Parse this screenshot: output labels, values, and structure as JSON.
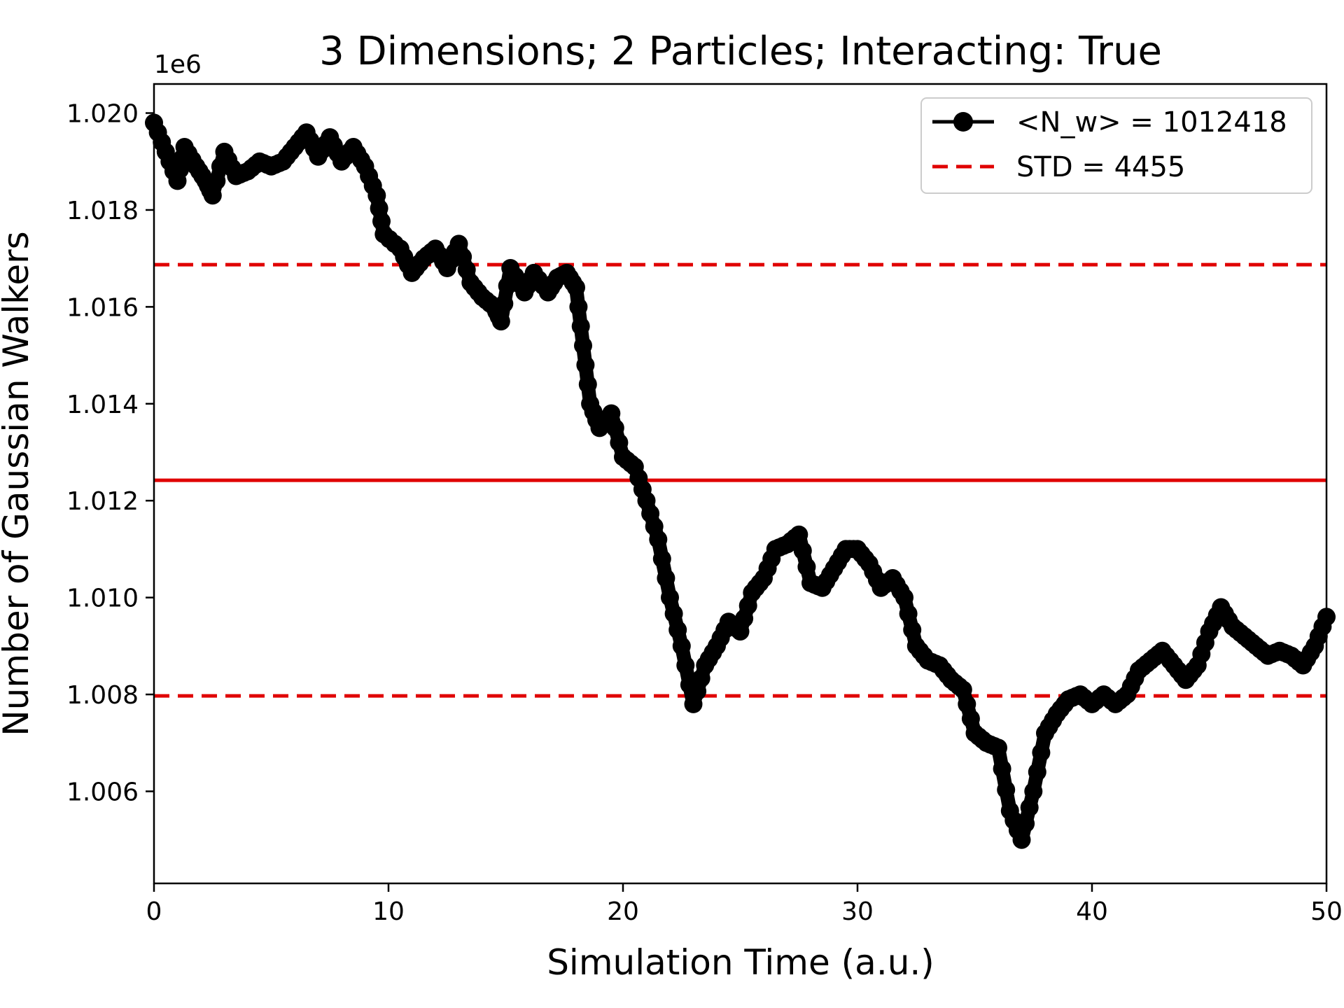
{
  "chart_data": {
    "type": "line",
    "title": "3 Dimensions; 2 Particles; Interacting: True",
    "xlabel": "Simulation Time (a.u.)",
    "ylabel": "Number of Gaussian Walkers",
    "y_offset_label": "1e6",
    "xlim": [
      0,
      50
    ],
    "ylim": [
      1.0041,
      1.0206
    ],
    "x_ticks": [
      0,
      10,
      20,
      30,
      40,
      50
    ],
    "x_tick_labels": [
      "0",
      "10",
      "20",
      "30",
      "40",
      "50"
    ],
    "y_ticks": [
      1.006,
      1.008,
      1.01,
      1.012,
      1.014,
      1.016,
      1.018,
      1.02
    ],
    "y_tick_labels": [
      "1.006",
      "1.008",
      "1.010",
      "1.012",
      "1.014",
      "1.016",
      "1.018",
      "1.020"
    ],
    "grid": false,
    "legend_position": "top-right",
    "series": [
      {
        "name": "<N_w> = 1012418",
        "style": "line-with-dots",
        "color": "#000000",
        "x": [
          0,
          0.5,
          1.0,
          1.3,
          1.8,
          2.2,
          2.5,
          3.0,
          3.5,
          4.0,
          4.5,
          5.0,
          5.5,
          6.0,
          6.5,
          7.0,
          7.5,
          8.0,
          8.5,
          9.0,
          9.5,
          9.8,
          10.5,
          11.0,
          11.5,
          12.0,
          12.5,
          13.0,
          13.5,
          14.0,
          14.5,
          14.8,
          15.2,
          15.8,
          16.2,
          16.8,
          17.2,
          17.6,
          18.0,
          18.3,
          18.6,
          19.0,
          19.5,
          20.0,
          20.5,
          21.0,
          21.5,
          22.0,
          22.5,
          23.0,
          23.5,
          24.0,
          24.5,
          25.0,
          25.5,
          26.0,
          26.5,
          27.0,
          27.5,
          28.0,
          28.5,
          29.0,
          29.5,
          30.0,
          30.5,
          31.0,
          31.5,
          32.0,
          32.5,
          33.0,
          33.5,
          34.0,
          34.5,
          35.0,
          35.5,
          36.0,
          36.5,
          37.0,
          37.5,
          38.0,
          38.5,
          39.0,
          39.5,
          40.0,
          40.5,
          41.0,
          41.5,
          42.0,
          42.5,
          43.0,
          43.5,
          44.0,
          44.5,
          45.0,
          45.5,
          46.0,
          46.5,
          47.0,
          47.5,
          48.0,
          48.5,
          49.0,
          49.5,
          50.0
        ],
        "values": [
          1.0198,
          1.0192,
          1.0186,
          1.0193,
          1.0189,
          1.0186,
          1.0183,
          1.0192,
          1.0187,
          1.0188,
          1.019,
          1.0189,
          1.019,
          1.0193,
          1.0196,
          1.0191,
          1.0195,
          1.019,
          1.0193,
          1.0189,
          1.0183,
          1.0175,
          1.0172,
          1.0167,
          1.017,
          1.0172,
          1.0168,
          1.0173,
          1.0165,
          1.0162,
          1.016,
          1.0157,
          1.0168,
          1.0163,
          1.0167,
          1.0163,
          1.0166,
          1.0167,
          1.0164,
          1.0152,
          1.014,
          1.0135,
          1.0138,
          1.0129,
          1.0127,
          1.012,
          1.0112,
          1.01,
          1.009,
          1.0078,
          1.0086,
          1.009,
          1.0095,
          1.0093,
          1.0101,
          1.0104,
          1.011,
          1.0111,
          1.0113,
          1.0103,
          1.0102,
          1.0106,
          1.011,
          1.011,
          1.0107,
          1.0102,
          1.0104,
          1.01,
          1.009,
          1.0087,
          1.0086,
          1.0083,
          1.0081,
          1.0072,
          1.007,
          1.0069,
          1.0056,
          1.005,
          1.006,
          1.0072,
          1.0076,
          1.0079,
          1.008,
          1.0078,
          1.008,
          1.0078,
          1.008,
          1.0085,
          1.0087,
          1.0089,
          1.0086,
          1.0083,
          1.0086,
          1.0093,
          1.0098,
          1.0094,
          1.0092,
          1.009,
          1.0088,
          1.0089,
          1.0088,
          1.0086,
          1.009,
          1.0096
        ]
      },
      {
        "name": "STD = 4455",
        "style": "dashed",
        "color": "#e00000",
        "values_hlines": [
          1.01687,
          1.00797
        ]
      },
      {
        "name": "",
        "style": "solid",
        "color": "#e00000",
        "values_hlines": [
          1.01242
        ]
      }
    ]
  }
}
